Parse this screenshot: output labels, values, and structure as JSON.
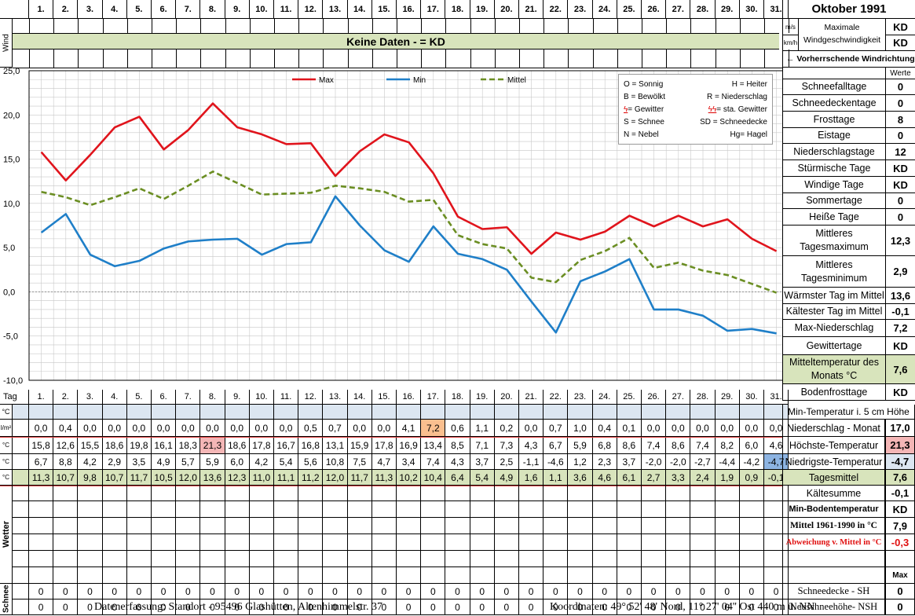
{
  "header": {
    "month_title": "Oktober 1991",
    "days": [
      "1.",
      "2.",
      "3.",
      "4.",
      "5.",
      "6.",
      "7.",
      "8.",
      "9.",
      "10.",
      "11.",
      "12.",
      "13.",
      "14.",
      "15.",
      "16.",
      "17.",
      "18.",
      "19.",
      "20.",
      "21.",
      "22.",
      "23.",
      "24.",
      "25.",
      "26.",
      "27.",
      "28.",
      "29.",
      "30.",
      "31."
    ],
    "unit_ms": "m/s",
    "unit_kmh": "km/h",
    "max_wind_label": "Maximale Windgeschwindigkeit",
    "max_wind_ms": "KD",
    "max_wind_kmh": "KD",
    "wind_label": "Wind",
    "no_data_banner": "Keine Daten -  = KD",
    "wind_dir_label": "← Vorherrschende Windrichtung"
  },
  "legend": {
    "max": "Max",
    "min": "Min",
    "mittel": "Mittel",
    "symbols": [
      [
        "O = Sonnig",
        "H = Heiter"
      ],
      [
        "B = Bewölkt",
        "R = Niederschlag"
      ],
      [
        "= Gewitter",
        "= sta. Gewitter"
      ],
      [
        "S = Schnee",
        "SD = Schneedecke"
      ],
      [
        "N = Nebel",
        "Hg= Hagel"
      ]
    ]
  },
  "chart_data": {
    "type": "line",
    "x": [
      1,
      2,
      3,
      4,
      5,
      6,
      7,
      8,
      9,
      10,
      11,
      12,
      13,
      14,
      15,
      16,
      17,
      18,
      19,
      20,
      21,
      22,
      23,
      24,
      25,
      26,
      27,
      28,
      29,
      30,
      31
    ],
    "ylim": [
      -10,
      25
    ],
    "y_ticks": [
      "25,0",
      "20,0",
      "15,0",
      "10,0",
      "5,0",
      "0,0",
      "-5,0",
      "-10,0"
    ],
    "series": [
      {
        "name": "Max",
        "color": "#e0141c",
        "values": [
          15.8,
          12.6,
          15.5,
          18.6,
          19.8,
          16.1,
          18.3,
          21.3,
          18.6,
          17.8,
          16.7,
          16.8,
          13.1,
          15.9,
          17.8,
          16.9,
          13.4,
          8.5,
          7.1,
          7.3,
          4.3,
          6.7,
          5.9,
          6.8,
          8.6,
          7.4,
          8.6,
          7.4,
          8.2,
          6.0,
          4.6
        ]
      },
      {
        "name": "Min",
        "color": "#1f7fc8",
        "values": [
          6.7,
          8.8,
          4.2,
          2.9,
          3.5,
          4.9,
          5.7,
          5.9,
          6.0,
          4.2,
          5.4,
          5.6,
          10.8,
          7.5,
          4.7,
          3.4,
          7.4,
          4.3,
          3.7,
          2.5,
          -1.1,
          -4.6,
          1.2,
          2.3,
          3.7,
          -2.0,
          -2.0,
          -2.7,
          -4.4,
          -4.2,
          -4.7
        ]
      },
      {
        "name": "Mittel",
        "color": "#6b8e23",
        "values": [
          11.3,
          10.7,
          9.8,
          10.7,
          11.7,
          10.5,
          12.0,
          13.6,
          12.3,
          11.0,
          11.1,
          11.2,
          12.0,
          11.7,
          11.3,
          10.2,
          10.4,
          6.4,
          5.4,
          4.9,
          1.6,
          1.1,
          3.6,
          4.6,
          6.1,
          2.7,
          3.3,
          2.4,
          1.9,
          0.9,
          -0.1
        ]
      }
    ]
  },
  "stats": {
    "werte_label": "Werte",
    "rows": [
      {
        "label": "Schneefalltage",
        "value": "0"
      },
      {
        "label": "Schneedeckentage",
        "value": "0"
      },
      {
        "label": "Frosttage",
        "value": "8"
      },
      {
        "label": "Eistage",
        "value": "0"
      },
      {
        "label": "Niederschlagstage",
        "value": "12"
      },
      {
        "label": "Stürmische Tage",
        "value": "KD"
      },
      {
        "label": "Windige Tage",
        "value": "KD"
      },
      {
        "label": "Sommertage",
        "value": "0"
      },
      {
        "label": "Heiße Tage",
        "value": "0"
      },
      {
        "label": "Mittleres Tagesmaximum",
        "value": "12,3"
      },
      {
        "label": "Mittleres Tagesminimum",
        "value": "2,9"
      },
      {
        "label": "Wärmster Tag im Mittel",
        "value": "13,6"
      },
      {
        "label": "Kältester Tag im Mittel",
        "value": "-0,1"
      },
      {
        "label": "Max-Niederschlag",
        "value": "7,2"
      },
      {
        "label": "Gewittertage",
        "value": "KD"
      },
      {
        "label": "Mitteltemperatur des Monats °C",
        "value": "7,6"
      },
      {
        "label": "Bodenfrosttage",
        "value": "KD"
      }
    ]
  },
  "table": {
    "tag_label": "Tag",
    "min5_label": "Min-Temperatur i. 5 cm Höhe",
    "unit_c": "°C",
    "unit_lm": "l/m²",
    "niederschlag": {
      "label": "Niederschlag - Monat",
      "total": "17,0",
      "values": [
        "0,0",
        "0,4",
        "0,0",
        "0,0",
        "0,0",
        "0,0",
        "0,0",
        "0,0",
        "0,0",
        "0,0",
        "0,0",
        "0,5",
        "0,7",
        "0,0",
        "0,0",
        "4,1",
        "7,2",
        "0,6",
        "1,1",
        "0,2",
        "0,0",
        "0,7",
        "1,0",
        "0,4",
        "0,1",
        "0,0",
        "0,0",
        "0,0",
        "0,0",
        "0,0",
        "0,0"
      ]
    },
    "hoechst": {
      "label": "Höchste-Temperatur",
      "total": "21,3",
      "values": [
        "15,8",
        "12,6",
        "15,5",
        "18,6",
        "19,8",
        "16,1",
        "18,3",
        "21,3",
        "18,6",
        "17,8",
        "16,7",
        "16,8",
        "13,1",
        "15,9",
        "17,8",
        "16,9",
        "13,4",
        "8,5",
        "7,1",
        "7,3",
        "4,3",
        "6,7",
        "5,9",
        "6,8",
        "8,6",
        "7,4",
        "8,6",
        "7,4",
        "8,2",
        "6,0",
        "4,6"
      ]
    },
    "niedrigst": {
      "label": "Niedrigste-Temperatur",
      "total": "-4,7",
      "values": [
        "6,7",
        "8,8",
        "4,2",
        "2,9",
        "3,5",
        "4,9",
        "5,7",
        "5,9",
        "6,0",
        "4,2",
        "5,4",
        "5,6",
        "10,8",
        "7,5",
        "4,7",
        "3,4",
        "7,4",
        "4,3",
        "3,7",
        "2,5",
        "-1,1",
        "-4,6",
        "1,2",
        "2,3",
        "3,7",
        "-2,0",
        "-2,0",
        "-2,7",
        "-4,4",
        "-4,2",
        "-4,7"
      ]
    },
    "mittel": {
      "label": "Tagesmittel",
      "total": "7,6",
      "values": [
        "11,3",
        "10,7",
        "9,8",
        "10,7",
        "11,7",
        "10,5",
        "12,0",
        "13,6",
        "12,3",
        "11,0",
        "11,1",
        "11,2",
        "12,0",
        "11,7",
        "11,3",
        "10,2",
        "10,4",
        "6,4",
        "5,4",
        "4,9",
        "1,6",
        "1,1",
        "3,6",
        "4,6",
        "6,1",
        "2,7",
        "3,3",
        "2,4",
        "1,9",
        "0,9",
        "-0,1"
      ]
    },
    "kaeltesumme": {
      "label": "Kältesumme",
      "value": "-0,1"
    },
    "min_boden": {
      "label": "Min-Bodentemperatur",
      "value": "KD"
    },
    "mittel6190": {
      "label": "Mittel 1961-1990 in °C",
      "value": "7,9"
    },
    "abweichung": {
      "label": "Abweichung v. Mittel in °C",
      "value": "-0,3"
    },
    "max_label": "Max",
    "wetter_label": "Wetter",
    "schnee_label": "Schnee",
    "schneedecke": {
      "label": "Schneedecke -   SH",
      "total": "0",
      "values": [
        "0",
        "0",
        "0",
        "0",
        "0",
        "0",
        "0",
        "0",
        "0",
        "0",
        "0",
        "0",
        "0",
        "0",
        "0",
        "0",
        "0",
        "0",
        "0",
        "0",
        "0",
        "0",
        "0",
        "0",
        "0",
        "0",
        "0",
        "0",
        "0",
        "0",
        "0"
      ]
    },
    "neuschnee": {
      "label": "Neuschneehöhe- NSH",
      "total": "0",
      "values": [
        "0",
        "0",
        "0",
        "0",
        "0",
        "0",
        "0",
        "0",
        "0",
        "0",
        "0",
        "0",
        "0",
        "0",
        "0",
        "0",
        "0",
        "0",
        "0",
        "0",
        "0",
        "0",
        "0",
        "0",
        "0",
        "0",
        "0",
        "0",
        "0",
        "0",
        "0"
      ]
    }
  },
  "footer": {
    "left": "Datenerfassung:  Standort -  95496  Glashütten, Altenhimmelstr. 37",
    "right": "Koordinaten:  49° 52' 48' Nord,  11° 27' 04'' Ost   440 m ü. NN"
  },
  "colors": {
    "green_band": "#d8e4bc",
    "blue_band": "#dce6f1",
    "max_highlight": "#f4b6b6",
    "precip_highlight": "#fabf8f",
    "min_highlight": "#8db4e2"
  }
}
